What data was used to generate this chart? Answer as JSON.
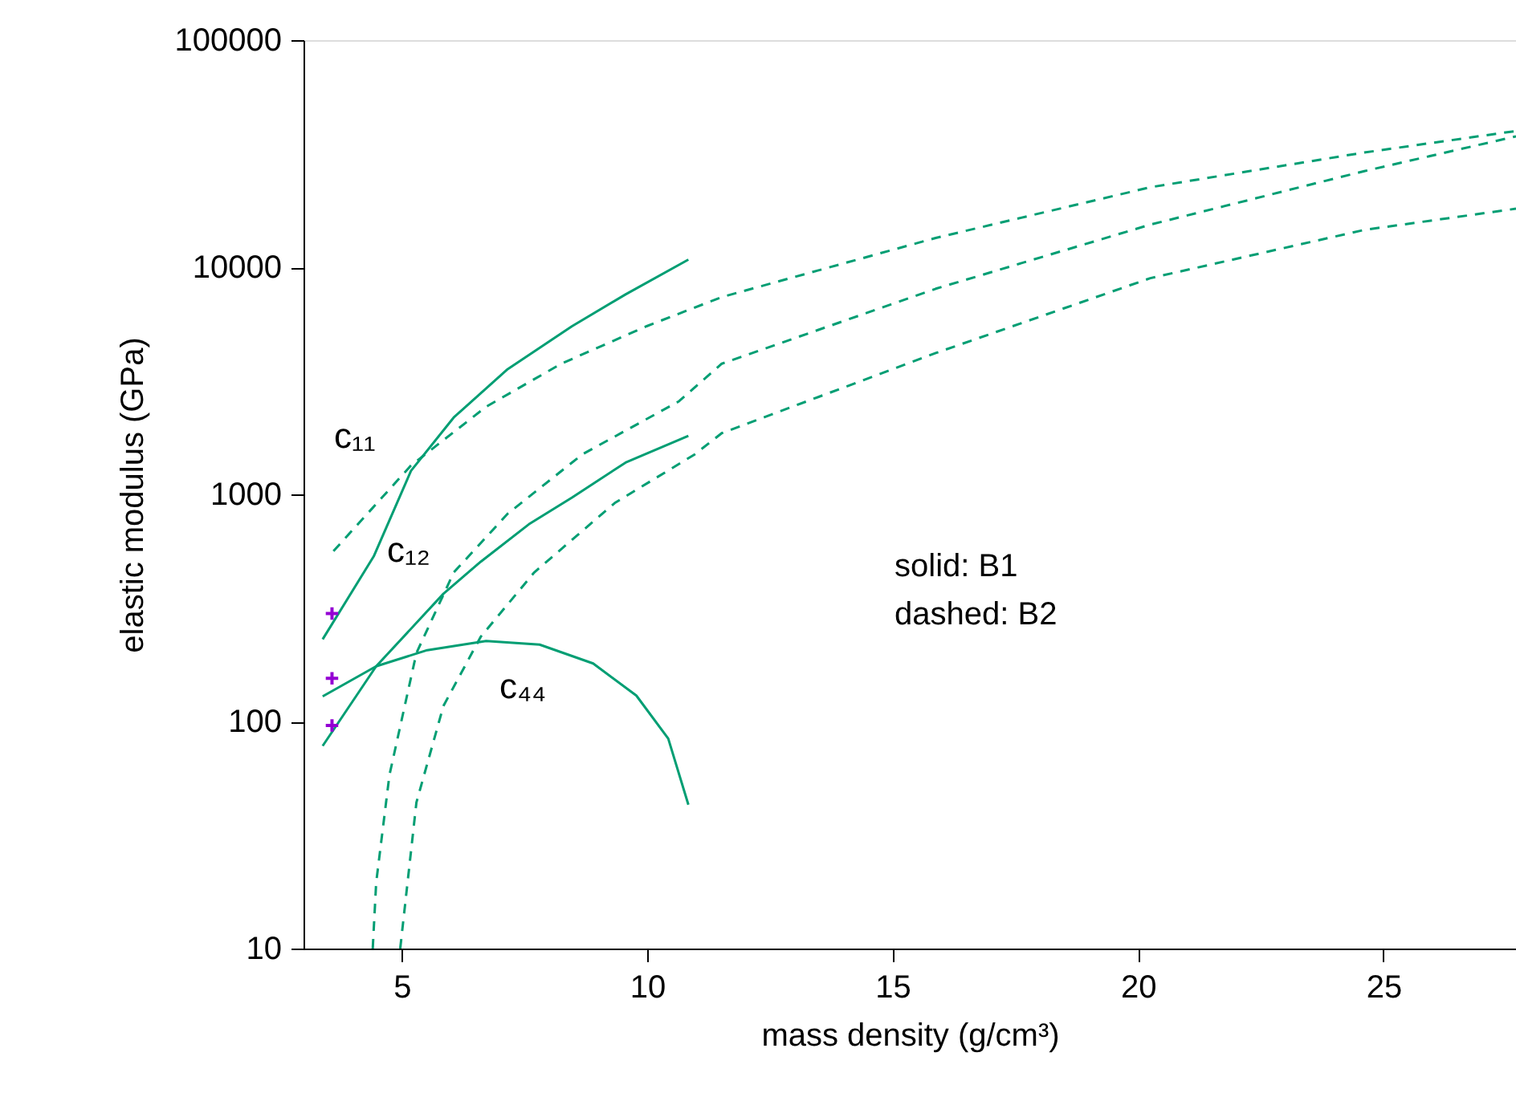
{
  "chart_data": {
    "type": "line",
    "xlabel": "mass density (g/cm³)",
    "ylabel": "elastic modulus (GPa)",
    "xlim": [
      3,
      27.7
    ],
    "xticks": [
      5,
      10,
      15,
      20,
      25
    ],
    "ylim": [
      10,
      100000
    ],
    "yticks": [
      10,
      100,
      1000,
      10000,
      100000
    ],
    "log": "y",
    "grid": false,
    "series": [
      {
        "color": "#009e73",
        "line_style": "solid",
        "marker": "none",
        "x": [
          3.39,
          4.43,
          5.19,
          6.06,
          7.16,
          8.47,
          9.56,
          10.84
        ],
        "values": [
          230,
          533,
          1270,
          2180,
          3560,
          5500,
          7590,
          10800
        ]
      },
      {
        "color": "#009e73",
        "line_style": "solid",
        "marker": "none",
        "x": [
          3.39,
          4.48,
          5.85,
          6.61,
          7.59,
          8.47,
          9.56,
          10.84
        ],
        "values": [
          78,
          175,
          365,
          505,
          738,
          968,
          1380,
          1810
        ]
      },
      {
        "color": "#009e73",
        "line_style": "solid",
        "marker": "none",
        "x": [
          3.39,
          4.48,
          5.52,
          6.72,
          7.81,
          8.9,
          9.78,
          10.43,
          10.84
        ],
        "values": [
          129,
          175,
          206,
          226,
          218,
          180,
          130,
          84,
          43
        ]
      },
      {
        "color": "#009e73",
        "line_style": "dashed",
        "marker": "none",
        "x": [
          3.61,
          5.19,
          6.72,
          8.25,
          9.99,
          11.52,
          15.88,
          20.25,
          24.61,
          27.7
        ],
        "values": [
          562,
          1340,
          2430,
          3760,
          5500,
          7390,
          13460,
          22500,
          32000,
          39800
        ]
      },
      {
        "color": "#009e73",
        "line_style": "dashed",
        "marker": "none",
        "x": [
          4.41,
          4.48,
          4.75,
          5.3,
          6.06,
          7.16,
          8.68,
          10.65,
          11.52,
          15.88,
          20.25,
          24.61,
          27.7
        ],
        "values": [
          10,
          19.5,
          58,
          200,
          453,
          822,
          1500,
          2570,
          3760,
          8040,
          15400,
          26500,
          37700
        ]
      },
      {
        "color": "#009e73",
        "line_style": "dashed",
        "marker": "none",
        "x": [
          4.97,
          5.3,
          5.85,
          6.61,
          7.7,
          9.34,
          10.97,
          11.52,
          15.88,
          20.25,
          24.61,
          27.7
        ],
        "values": [
          10,
          44,
          117,
          236,
          453,
          916,
          1500,
          1860,
          4190,
          8950,
          14600,
          18100
        ]
      },
      {
        "type": "scatter",
        "color": "#9400d3",
        "marker": "cross",
        "x": [
          3.58,
          3.58,
          3.58
        ],
        "values": [
          299,
          155,
          96
        ]
      }
    ],
    "annotations": [
      "c₁₁",
      "c₁₂",
      "c₄₄",
      "solid: B1",
      "dashed: B2"
    ]
  }
}
